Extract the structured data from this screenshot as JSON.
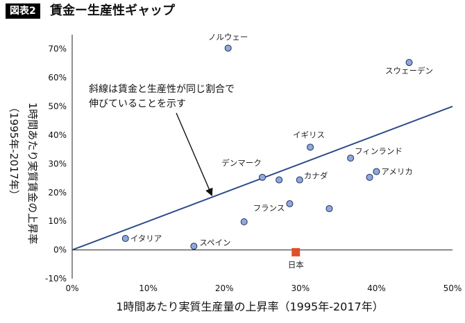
{
  "figure": {
    "badge": "図表2",
    "title": "賃金ー生産性ギャップ"
  },
  "chart_data": {
    "type": "scatter",
    "xlabel": "1時間あたり実質生産量の上昇率（1995年-2017年）",
    "ylabel": [
      "1時間あたり実質賃金の上昇率",
      "（1995年-2017年）"
    ],
    "xlim": [
      0,
      50
    ],
    "ylim": [
      -10,
      75
    ],
    "x_ticks": [
      "0%",
      "10%",
      "20%",
      "30%",
      "40%",
      "50%"
    ],
    "y_ticks": [
      "-10%",
      "0%",
      "10%",
      "20%",
      "30%",
      "40%",
      "50%",
      "60%",
      "70%"
    ],
    "points": [
      {
        "label": "ノルウェー",
        "x": 20.5,
        "y": 70.3,
        "color": "#8fa9dc"
      },
      {
        "label": "スウェーデン",
        "x": 44.3,
        "y": 65.3,
        "color": "#8fa9dc"
      },
      {
        "label": "イギリス",
        "x": 31.3,
        "y": 35.8,
        "color": "#8fa9dc"
      },
      {
        "label": "フィンランド",
        "x": 36.6,
        "y": 32.0,
        "color": "#8fa9dc"
      },
      {
        "label": "アメリカ",
        "x": 40.0,
        "y": 27.3,
        "color": "#8fa9dc"
      },
      {
        "label": "",
        "x": 39.1,
        "y": 25.3,
        "color": "#8fa9dc"
      },
      {
        "label": "デンマーク",
        "x": 25.0,
        "y": 25.3,
        "color": "#8fa9dc"
      },
      {
        "label": "カナダ",
        "x": 29.9,
        "y": 24.4,
        "color": "#8fa9dc"
      },
      {
        "label": "",
        "x": 27.2,
        "y": 24.4,
        "color": "#8fa9dc"
      },
      {
        "label": "フランス",
        "x": 28.6,
        "y": 16.1,
        "color": "#8fa9dc"
      },
      {
        "label": "",
        "x": 33.8,
        "y": 14.4,
        "color": "#8fa9dc"
      },
      {
        "label": "",
        "x": 22.6,
        "y": 9.8,
        "color": "#8fa9dc"
      },
      {
        "label": "イタリア",
        "x": 7.0,
        "y": 4.0,
        "color": "#8fa9dc"
      },
      {
        "label": "スペイン",
        "x": 16.0,
        "y": 1.3,
        "color": "#8fa9dc"
      },
      {
        "label": "日本",
        "x": 29.4,
        "y": -0.8,
        "color": "#e0502a",
        "shape": "square"
      }
    ],
    "reference_line": {
      "x": [
        0,
        50
      ],
      "y": [
        0,
        50
      ],
      "color": "#2e4a8a"
    },
    "annotation": {
      "lines": [
        "斜線は賃金と生産性が同じ割合で",
        "伸びていることを示す"
      ],
      "arrow_to": {
        "x": 18,
        "y": 18
      }
    },
    "grid": false
  }
}
